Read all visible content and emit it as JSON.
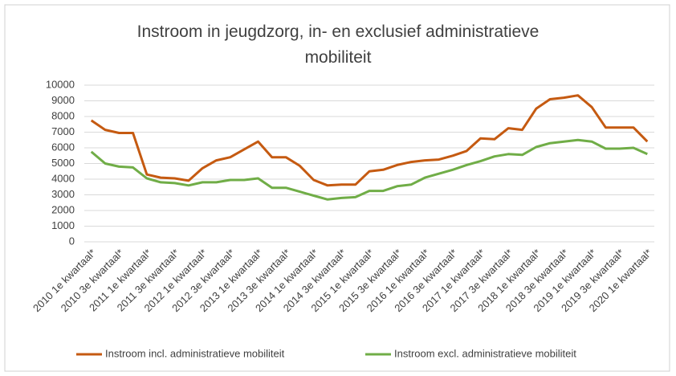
{
  "chart_data": {
    "type": "line",
    "title": "Instroom in jeugdzorg, in- en exclusief administratieve mobiliteit",
    "categories": [
      "2010 1e kwartaal*",
      null,
      "2010 3e kwartaal*",
      null,
      "2011 1e kwartaal*",
      null,
      "2011 3e kwartaal*",
      null,
      "2012 1e kwartaal*",
      null,
      "2012 3e kwartaal*",
      null,
      "2013 1e kwartaal*",
      null,
      "2013 3e kwartaal*",
      null,
      "2014 1e kwartaal*",
      null,
      "2014 3e kwartaal*",
      null,
      "2015 1e kwartaal*",
      null,
      "2015 3e kwartaal*",
      null,
      "2016 1e kwartaal*",
      null,
      "2016 3e kwartaal*",
      null,
      "2017 1e kwartaal*",
      null,
      "2017 3e kwartaal*",
      null,
      "2018 1e kwartaal*",
      null,
      "2018 3e kwartaal*",
      null,
      "2019 1e kwartaal*",
      null,
      "2019 3e kwartaal*",
      null,
      "2020 1e kwartaal*"
    ],
    "series": [
      {
        "name": "Instroom incl. administratieve mobiliteit",
        "color": "#c55a11",
        "values": [
          7750,
          7150,
          6950,
          6950,
          4300,
          4100,
          4050,
          3900,
          4700,
          5200,
          5400,
          5900,
          6400,
          5400,
          5400,
          4850,
          3950,
          3600,
          3650,
          3650,
          4500,
          4600,
          4900,
          5100,
          5200,
          5250,
          5500,
          5800,
          6600,
          6550,
          7250,
          7150,
          8500,
          9100,
          9200,
          9350,
          8600,
          7300,
          7300,
          7300,
          6400
        ]
      },
      {
        "name": "Instroom excl. administratieve mobiliteit",
        "color": "#70ad47",
        "values": [
          5750,
          5000,
          4800,
          4750,
          4050,
          3800,
          3750,
          3600,
          3800,
          3800,
          3950,
          3950,
          4050,
          3450,
          3450,
          3200,
          2950,
          2700,
          2800,
          2850,
          3250,
          3250,
          3550,
          3650,
          4100,
          4350,
          4600,
          4900,
          5150,
          5450,
          5600,
          5550,
          6050,
          6300,
          6400,
          6500,
          6400,
          5950,
          5950,
          6000,
          5600
        ]
      }
    ],
    "ylim": [
      0,
      10000
    ],
    "yticks": [
      0,
      1000,
      2000,
      3000,
      4000,
      5000,
      6000,
      7000,
      8000,
      9000,
      10000
    ],
    "grid": true,
    "legend": "bottom"
  }
}
